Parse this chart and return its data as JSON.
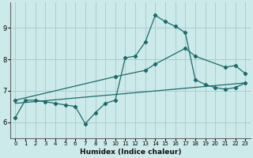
{
  "xlabel": "Humidex (Indice chaleur)",
  "ylabel": "",
  "background_color": "#cdeaea",
  "grid_color": "#aacece",
  "line_color": "#1a6b6b",
  "xlim": [
    -0.5,
    23.5
  ],
  "ylim": [
    5.5,
    9.8
  ],
  "xticks": [
    0,
    1,
    2,
    3,
    4,
    5,
    6,
    7,
    8,
    9,
    10,
    11,
    12,
    13,
    14,
    15,
    16,
    17,
    18,
    19,
    20,
    21,
    22,
    23
  ],
  "yticks": [
    6,
    7,
    8,
    9
  ],
  "series1_x": [
    0,
    1,
    2,
    3,
    4,
    5,
    6,
    7,
    8,
    9,
    10,
    11,
    12,
    13,
    14,
    15,
    16,
    17,
    18,
    19,
    20,
    21,
    22,
    23
  ],
  "series1_y": [
    6.15,
    6.7,
    6.7,
    6.65,
    6.6,
    6.55,
    6.5,
    5.95,
    6.3,
    6.6,
    6.7,
    8.05,
    8.1,
    8.55,
    9.4,
    9.2,
    9.05,
    8.85,
    7.35,
    7.2,
    7.1,
    7.05,
    7.1,
    7.25
  ],
  "series2_x": [
    0,
    23
  ],
  "series2_y": [
    6.6,
    7.25
  ],
  "series3_x": [
    0,
    10,
    13,
    14,
    17,
    18,
    21,
    22,
    23
  ],
  "series3_y": [
    6.7,
    7.45,
    7.65,
    7.85,
    8.35,
    8.1,
    7.75,
    7.8,
    7.55
  ]
}
